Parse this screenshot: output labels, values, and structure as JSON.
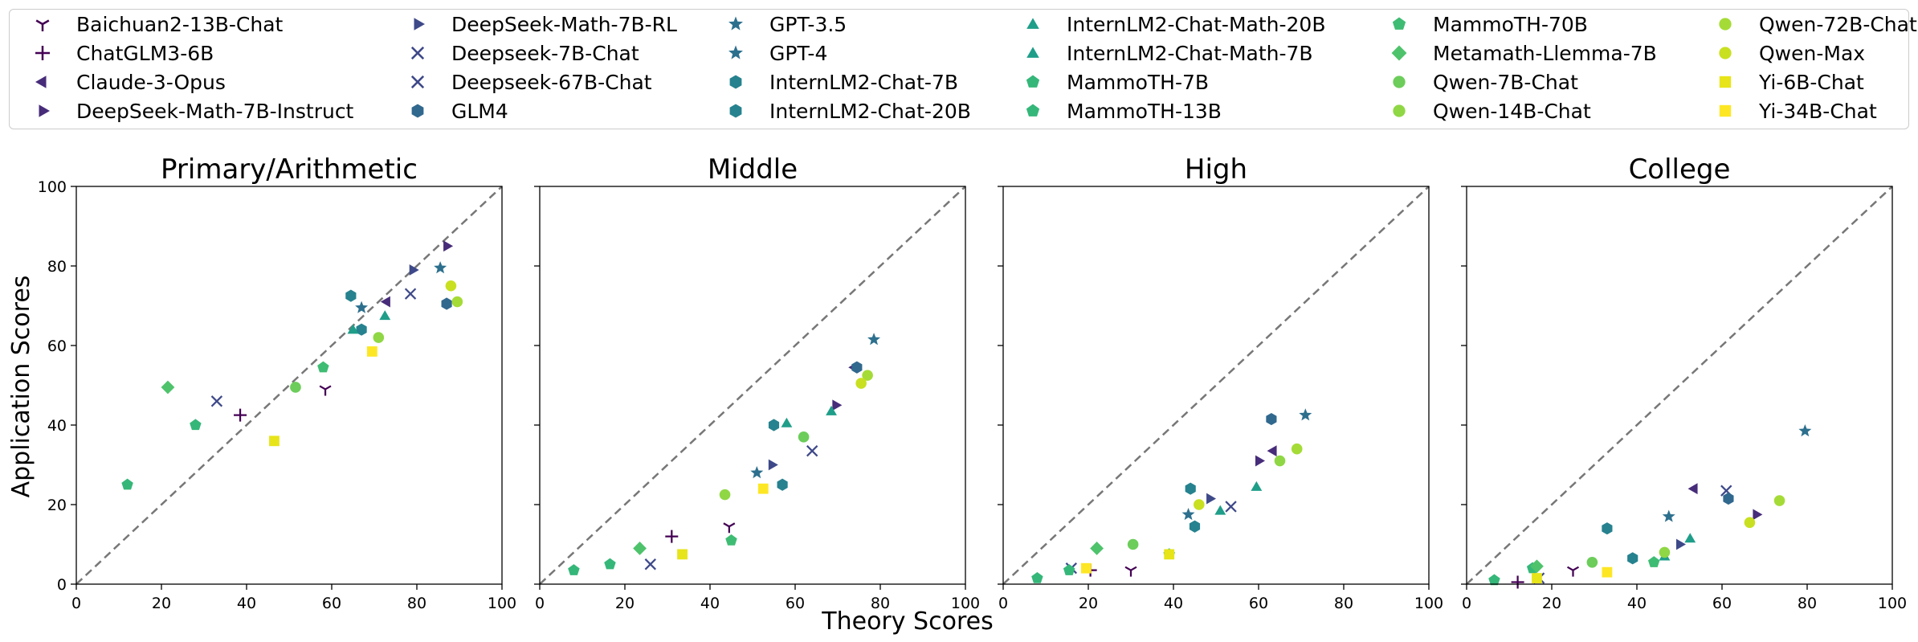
{
  "legend": [
    {
      "name": "Baichuan2-13B-Chat",
      "marker": "tri-down-icon",
      "color": "#440154"
    },
    {
      "name": "ChatGLM3-6B",
      "marker": "plus-icon",
      "color": "#440154"
    },
    {
      "name": "Claude-3-Opus",
      "marker": "triangle-left-icon",
      "color": "#472c7a"
    },
    {
      "name": "DeepSeek-Math-7B-Instruct",
      "marker": "triangle-right-icon",
      "color": "#472c7a"
    },
    {
      "name": "DeepSeek-Math-7B-RL",
      "marker": "triangle-right-icon",
      "color": "#3e4989"
    },
    {
      "name": "Deepseek-7B-Chat",
      "marker": "x-icon",
      "color": "#3e4989"
    },
    {
      "name": "Deepseek-67B-Chat",
      "marker": "x-icon",
      "color": "#3e4989"
    },
    {
      "name": "GLM4",
      "marker": "hexagon-icon",
      "color": "#31688e"
    },
    {
      "name": "GPT-3.5",
      "marker": "star-icon",
      "color": "#2d708e"
    },
    {
      "name": "GPT-4",
      "marker": "star-icon",
      "color": "#2d708e"
    },
    {
      "name": "InternLM2-Chat-7B",
      "marker": "hexagon-icon",
      "color": "#26828e"
    },
    {
      "name": "InternLM2-Chat-20B",
      "marker": "hexagon-icon",
      "color": "#26828e"
    },
    {
      "name": "InternLM2-Chat-Math-20B",
      "marker": "triangle-up-icon",
      "color": "#1f9e89"
    },
    {
      "name": "InternLM2-Chat-Math-7B",
      "marker": "triangle-up-icon",
      "color": "#1f9e89"
    },
    {
      "name": "MammoTH-7B",
      "marker": "pentagon-icon",
      "color": "#35b779"
    },
    {
      "name": "MammoTH-13B",
      "marker": "pentagon-icon",
      "color": "#35b779"
    },
    {
      "name": "MammoTH-70B",
      "marker": "pentagon-icon",
      "color": "#3fbc73"
    },
    {
      "name": "Metamath-Llemma-7B",
      "marker": "diamond-icon",
      "color": "#4ec36b"
    },
    {
      "name": "Qwen-7B-Chat",
      "marker": "circle-icon",
      "color": "#6ccd5a"
    },
    {
      "name": "Qwen-14B-Chat",
      "marker": "circle-icon",
      "color": "#8fd744"
    },
    {
      "name": "Qwen-72B-Chat",
      "marker": "circle-icon",
      "color": "#a5db36"
    },
    {
      "name": "Qwen-Max",
      "marker": "circle-icon",
      "color": "#c8e020"
    },
    {
      "name": "Yi-6B-Chat",
      "marker": "square-icon",
      "color": "#e7e419"
    },
    {
      "name": "Yi-34B-Chat",
      "marker": "square-icon",
      "color": "#fde725"
    }
  ],
  "chart_data": {
    "type": "scatter",
    "xlabel": "Theory Scores",
    "ylabel": "Application Scores",
    "xlim": [
      0,
      100
    ],
    "ylim": [
      0,
      100
    ],
    "xticks": [
      "0",
      "20",
      "40",
      "60",
      "80",
      "100"
    ],
    "yticks": [
      "0",
      "20",
      "40",
      "60",
      "80",
      "100"
    ],
    "reference_line": "y = x (dashed)",
    "panels": [
      {
        "title": "Primary/Arithmetic",
        "points": [
          {
            "model": "Baichuan2-13B-Chat",
            "x": 58.5,
            "y": 49
          },
          {
            "model": "ChatGLM3-6B",
            "x": 38.5,
            "y": 42.5
          },
          {
            "model": "Claude-3-Opus",
            "x": 73,
            "y": 71
          },
          {
            "model": "DeepSeek-Math-7B-Instruct",
            "x": 87,
            "y": 85
          },
          {
            "model": "DeepSeek-Math-7B-RL",
            "x": 79,
            "y": 79
          },
          {
            "model": "Deepseek-7B-Chat",
            "x": 33,
            "y": 46
          },
          {
            "model": "Deepseek-67B-Chat",
            "x": 78.5,
            "y": 73
          },
          {
            "model": "GLM4",
            "x": 87,
            "y": 70.5
          },
          {
            "model": "GPT-3.5",
            "x": 67,
            "y": 69.5
          },
          {
            "model": "GPT-4",
            "x": 85.5,
            "y": 79.5
          },
          {
            "model": "InternLM2-Chat-7B",
            "x": 64.5,
            "y": 72.5
          },
          {
            "model": "InternLM2-Chat-20B",
            "x": 67,
            "y": 64
          },
          {
            "model": "InternLM2-Chat-Math-20B",
            "x": 72.5,
            "y": 67.5
          },
          {
            "model": "InternLM2-Chat-Math-7B",
            "x": 65,
            "y": 64
          },
          {
            "model": "MammoTH-7B",
            "x": 12,
            "y": 25
          },
          {
            "model": "MammoTH-13B",
            "x": 28,
            "y": 40
          },
          {
            "model": "MammoTH-70B",
            "x": 58,
            "y": 54.5
          },
          {
            "model": "Metamath-Llemma-7B",
            "x": 21.5,
            "y": 49.5
          },
          {
            "model": "Qwen-7B-Chat",
            "x": 51.5,
            "y": 49.5
          },
          {
            "model": "Qwen-14B-Chat",
            "x": 71,
            "y": 62
          },
          {
            "model": "Qwen-72B-Chat",
            "x": 89.5,
            "y": 71
          },
          {
            "model": "Qwen-Max",
            "x": 88,
            "y": 75
          },
          {
            "model": "Yi-6B-Chat",
            "x": 46.5,
            "y": 36
          },
          {
            "model": "Yi-34B-Chat",
            "x": 69.5,
            "y": 58.5
          }
        ]
      },
      {
        "title": "Middle",
        "points": [
          {
            "model": "Baichuan2-13B-Chat",
            "x": 44.5,
            "y": 14.5
          },
          {
            "model": "ChatGLM3-6B",
            "x": 31,
            "y": 12
          },
          {
            "model": "Claude-3-Opus",
            "x": 74,
            "y": 54.5
          },
          {
            "model": "DeepSeek-Math-7B-Instruct",
            "x": 69.5,
            "y": 45
          },
          {
            "model": "DeepSeek-Math-7B-RL",
            "x": 54.5,
            "y": 30
          },
          {
            "model": "Deepseek-7B-Chat",
            "x": 26,
            "y": 5
          },
          {
            "model": "Deepseek-67B-Chat",
            "x": 64,
            "y": 33.5
          },
          {
            "model": "GLM4",
            "x": 74.5,
            "y": 54.5
          },
          {
            "model": "GPT-3.5",
            "x": 51,
            "y": 28
          },
          {
            "model": "GPT-4",
            "x": 78.5,
            "y": 61.5
          },
          {
            "model": "InternLM2-Chat-7B",
            "x": 57,
            "y": 25
          },
          {
            "model": "InternLM2-Chat-20B",
            "x": 55,
            "y": 40
          },
          {
            "model": "InternLM2-Chat-Math-20B",
            "x": 58,
            "y": 40.5
          },
          {
            "model": "InternLM2-Chat-Math-7B",
            "x": 68.5,
            "y": 43.5
          },
          {
            "model": "MammoTH-7B",
            "x": 8,
            "y": 3.5
          },
          {
            "model": "MammoTH-13B",
            "x": 16.5,
            "y": 5
          },
          {
            "model": "MammoTH-70B",
            "x": 45,
            "y": 11
          },
          {
            "model": "Metamath-Llemma-7B",
            "x": 23.5,
            "y": 9
          },
          {
            "model": "Qwen-7B-Chat",
            "x": 62,
            "y": 37
          },
          {
            "model": "Qwen-14B-Chat",
            "x": 43.5,
            "y": 22.5
          },
          {
            "model": "Qwen-72B-Chat",
            "x": 77,
            "y": 52.5
          },
          {
            "model": "Qwen-Max",
            "x": 75.5,
            "y": 50.5
          },
          {
            "model": "Yi-6B-Chat",
            "x": 33.5,
            "y": 7.5
          },
          {
            "model": "Yi-34B-Chat",
            "x": 52.5,
            "y": 24
          }
        ]
      },
      {
        "title": "High",
        "points": [
          {
            "model": "Baichuan2-13B-Chat",
            "x": 30,
            "y": 3.5
          },
          {
            "model": "ChatGLM3-6B",
            "x": 20.5,
            "y": 3.5
          },
          {
            "model": "Claude-3-Opus",
            "x": 63.5,
            "y": 33.5
          },
          {
            "model": "DeepSeek-Math-7B-Instruct",
            "x": 60,
            "y": 31
          },
          {
            "model": "DeepSeek-Math-7B-RL",
            "x": 48.5,
            "y": 21.5
          },
          {
            "model": "Deepseek-7B-Chat",
            "x": 16,
            "y": 4
          },
          {
            "model": "Deepseek-67B-Chat",
            "x": 53.5,
            "y": 19.5
          },
          {
            "model": "GLM4",
            "x": 63,
            "y": 41.5
          },
          {
            "model": "GPT-3.5",
            "x": 43.5,
            "y": 17.5
          },
          {
            "model": "GPT-4",
            "x": 71,
            "y": 42.5
          },
          {
            "model": "InternLM2-Chat-7B",
            "x": 45,
            "y": 14.5
          },
          {
            "model": "InternLM2-Chat-20B",
            "x": 44,
            "y": 24
          },
          {
            "model": "InternLM2-Chat-Math-20B",
            "x": 51,
            "y": 18.5
          },
          {
            "model": "InternLM2-Chat-Math-7B",
            "x": 59.5,
            "y": 24.5
          },
          {
            "model": "MammoTH-7B",
            "x": 8,
            "y": 1.5
          },
          {
            "model": "MammoTH-13B",
            "x": 15.5,
            "y": 3.5
          },
          {
            "model": "MammoTH-70B",
            "x": 39,
            "y": 7.5
          },
          {
            "model": "Metamath-Llemma-7B",
            "x": 22,
            "y": 9
          },
          {
            "model": "Qwen-7B-Chat",
            "x": 30.5,
            "y": 10
          },
          {
            "model": "Qwen-14B-Chat",
            "x": 65,
            "y": 31
          },
          {
            "model": "Qwen-72B-Chat",
            "x": 69,
            "y": 34
          },
          {
            "model": "Qwen-Max",
            "x": 46,
            "y": 20
          },
          {
            "model": "Yi-6B-Chat",
            "x": 39,
            "y": 7.5
          },
          {
            "model": "Yi-34B-Chat",
            "x": 19.5,
            "y": 4
          }
        ]
      },
      {
        "title": "College",
        "points": [
          {
            "model": "Baichuan2-13B-Chat",
            "x": 25,
            "y": 3.5
          },
          {
            "model": "ChatGLM3-6B",
            "x": 12,
            "y": 0.5
          },
          {
            "model": "Claude-3-Opus",
            "x": 53.5,
            "y": 24
          },
          {
            "model": "DeepSeek-Math-7B-Instruct",
            "x": 68,
            "y": 17.5
          },
          {
            "model": "DeepSeek-Math-7B-RL",
            "x": 50,
            "y": 10
          },
          {
            "model": "Deepseek-7B-Chat",
            "x": 17,
            "y": 1.5
          },
          {
            "model": "Deepseek-67B-Chat",
            "x": 61,
            "y": 23.5
          },
          {
            "model": "GLM4",
            "x": 61.5,
            "y": 21.5
          },
          {
            "model": "GPT-3.5",
            "x": 47.5,
            "y": 17
          },
          {
            "model": "GPT-4",
            "x": 79.5,
            "y": 38.5
          },
          {
            "model": "InternLM2-Chat-7B",
            "x": 39,
            "y": 6.5
          },
          {
            "model": "InternLM2-Chat-20B",
            "x": 33,
            "y": 14
          },
          {
            "model": "InternLM2-Chat-Math-20B",
            "x": 52.5,
            "y": 11.5
          },
          {
            "model": "InternLM2-Chat-Math-7B",
            "x": 46.5,
            "y": 7
          },
          {
            "model": "MammoTH-7B",
            "x": 6.5,
            "y": 1
          },
          {
            "model": "MammoTH-13B",
            "x": 15.5,
            "y": 4
          },
          {
            "model": "MammoTH-70B",
            "x": 44,
            "y": 5.5
          },
          {
            "model": "Metamath-Llemma-7B",
            "x": 16.5,
            "y": 4.5
          },
          {
            "model": "Qwen-7B-Chat",
            "x": 29.5,
            "y": 5.5
          },
          {
            "model": "Qwen-14B-Chat",
            "x": 46.5,
            "y": 8
          },
          {
            "model": "Qwen-72B-Chat",
            "x": 73.5,
            "y": 21
          },
          {
            "model": "Qwen-Max",
            "x": 66.5,
            "y": 15.5
          },
          {
            "model": "Yi-6B-Chat",
            "x": 16.5,
            "y": 1.5
          },
          {
            "model": "Yi-34B-Chat",
            "x": 33,
            "y": 3
          }
        ]
      }
    ]
  }
}
